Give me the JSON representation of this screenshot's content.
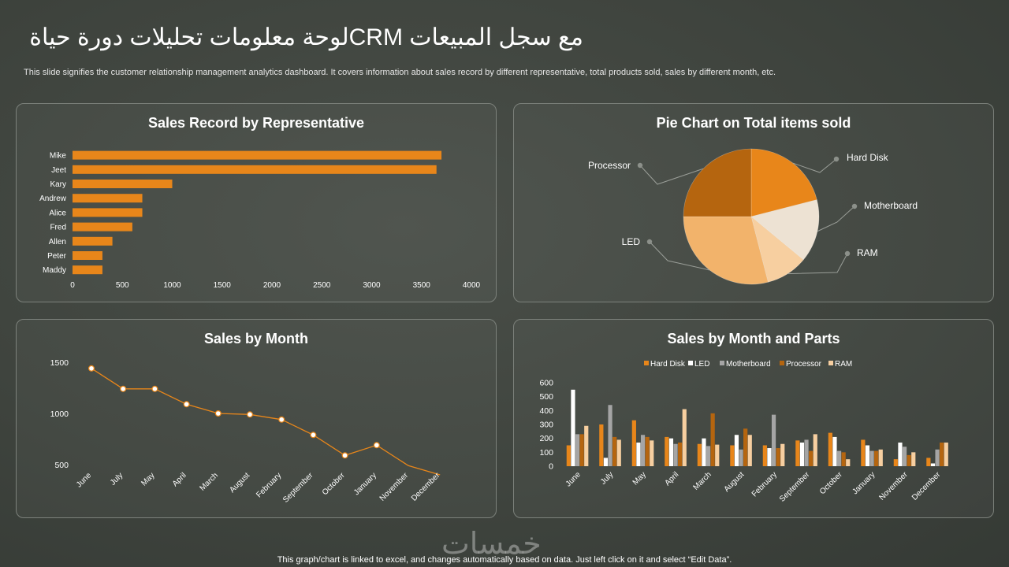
{
  "header": {
    "title": "مع سجل المبيعات CRMلوحة معلومات تحليلات دورة حياة",
    "subtitle": "This slide signifies the customer relationship management analytics dashboard. It covers information about sales record by different representative, total products sold, sales by different month, etc."
  },
  "footer": {
    "note": "This graph/chart is linked to excel,  and changes automatically based on data. Just left click on it and select “Edit Data”.",
    "watermark": "خمسات"
  },
  "colors": {
    "orange": "#e8861a",
    "dark_orange": "#b5650f",
    "light_orange": "#f2b36b",
    "peach": "#f7cfa0",
    "cream": "#ede2d3",
    "gray": "#a5a5a5",
    "white": "#ffffff"
  },
  "chart_data": [
    {
      "id": "reps",
      "type": "bar",
      "orientation": "horizontal",
      "title": "Sales Record by Representative",
      "categories": [
        "Mike",
        "Jeet",
        "Kary",
        "Andrew",
        "Alice",
        "Fred",
        "Allen",
        "Peter",
        "Maddy"
      ],
      "values": [
        3700,
        3650,
        1000,
        700,
        700,
        600,
        400,
        300,
        300
      ],
      "xlim": [
        0,
        4000
      ],
      "xticks": [
        "0",
        "500",
        "1000",
        "1500",
        "2000",
        "2500",
        "3000",
        "3500",
        "4000"
      ],
      "grid": false
    },
    {
      "id": "pie",
      "type": "pie",
      "title": "Pie Chart on Total items sold",
      "slices": [
        {
          "label": "Hard Disk",
          "value": 21
        },
        {
          "label": "Motherboard",
          "value": 15
        },
        {
          "label": "RAM",
          "value": 10
        },
        {
          "label": "LED",
          "value": 29
        },
        {
          "label": "Processor",
          "value": 25
        }
      ]
    },
    {
      "id": "month",
      "type": "line",
      "title": "Sales by Month",
      "categories": [
        "June",
        "July",
        "May",
        "April",
        "March",
        "August",
        "February",
        "September",
        "October",
        "January",
        "November",
        "December"
      ],
      "values": [
        1440,
        1240,
        1240,
        1090,
        1000,
        990,
        940,
        790,
        590,
        690,
        490,
        400
      ],
      "ylim": [
        500,
        1500
      ],
      "yticks": [
        "1500",
        "1000",
        "500"
      ],
      "grid": false
    },
    {
      "id": "parts",
      "type": "bar",
      "title": "Sales by Month and Parts",
      "categories": [
        "June",
        "July",
        "May",
        "April",
        "March",
        "August",
        "February",
        "September",
        "October",
        "January",
        "November",
        "December"
      ],
      "series": [
        {
          "name": "Hard Disk",
          "values": [
            150,
            300,
            330,
            210,
            160,
            150,
            150,
            185,
            240,
            190,
            50,
            60
          ]
        },
        {
          "name": "LED",
          "values": [
            550,
            60,
            170,
            200,
            200,
            225,
            130,
            170,
            210,
            150,
            170,
            20
          ]
        },
        {
          "name": "Motherboard",
          "values": [
            230,
            440,
            225,
            160,
            145,
            120,
            370,
            190,
            110,
            110,
            140,
            120
          ]
        },
        {
          "name": "Processor",
          "values": [
            230,
            210,
            210,
            170,
            380,
            270,
            130,
            110,
            100,
            110,
            80,
            170
          ]
        },
        {
          "name": "RAM",
          "values": [
            290,
            190,
            185,
            410,
            155,
            225,
            160,
            230,
            50,
            120,
            100,
            170
          ]
        }
      ],
      "ylim": [
        0,
        600
      ],
      "yticks": [
        "0",
        "100",
        "200",
        "300",
        "400",
        "500",
        "600"
      ],
      "legend": "top",
      "grid": false
    }
  ]
}
